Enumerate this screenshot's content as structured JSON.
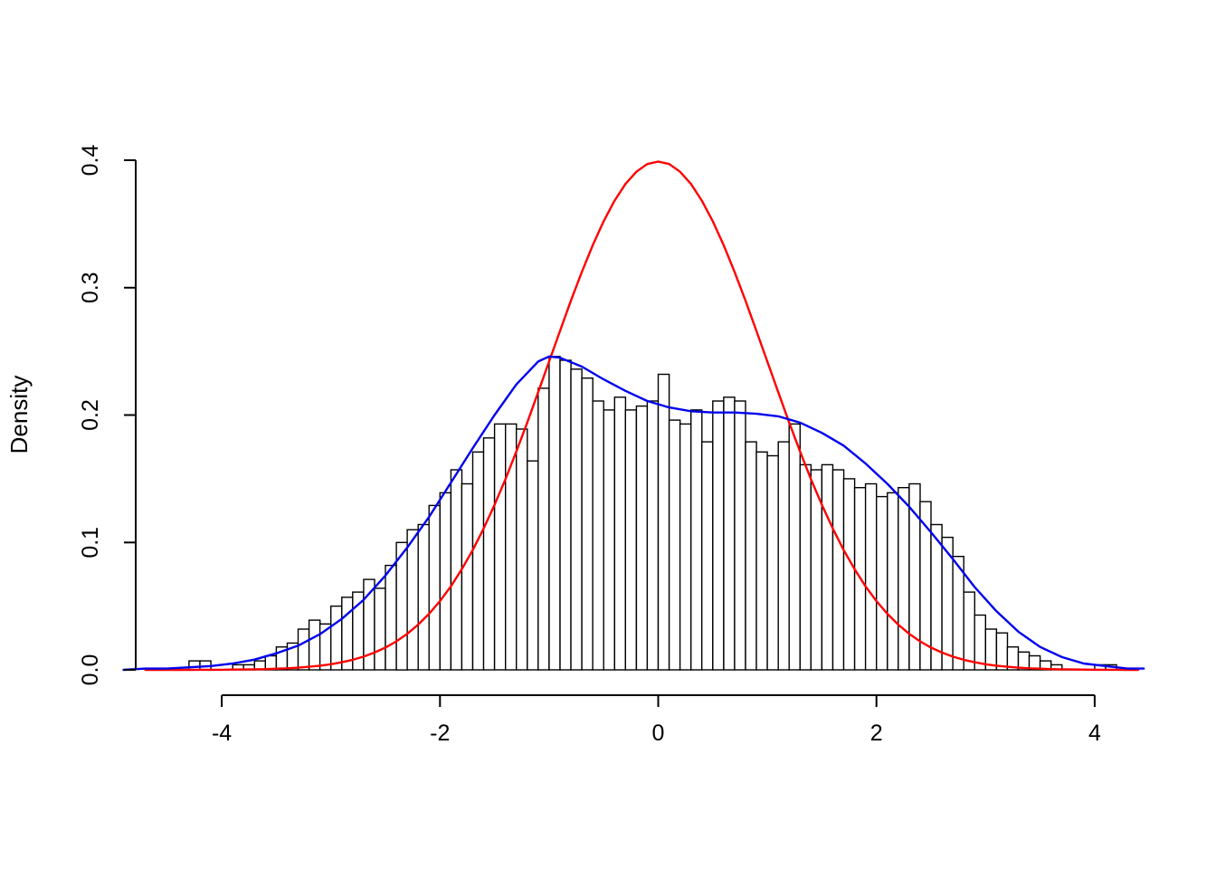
{
  "figure": {
    "background": "#ffffff"
  },
  "chart_data": {
    "type": "histogram",
    "title": "",
    "xlabel": "",
    "ylabel": "Density",
    "legend": "none",
    "grid": false,
    "xlim": [
      -4.9,
      4.45
    ],
    "ylim": [
      0,
      0.4
    ],
    "x_axis": {
      "ticks": [
        -4,
        -2,
        0,
        2,
        4
      ],
      "labels": [
        "-4",
        "-2",
        "0",
        "2",
        "4"
      ],
      "range": [
        -4,
        4
      ]
    },
    "y_axis": {
      "ticks": [
        0,
        0.1,
        0.2,
        0.3,
        0.4
      ],
      "labels": [
        "0.0",
        "0.1",
        "0.2",
        "0.3",
        "0.4"
      ],
      "range": [
        0,
        0.4
      ],
      "title": "Density"
    },
    "histogram": {
      "bar_fill": "#ffffff",
      "bar_stroke": "#000000",
      "bin_start": -4.3,
      "bin_width": 0.1,
      "densities": [
        0.007,
        0.007,
        0,
        0,
        0.004,
        0.004,
        0.007,
        0.011,
        0.018,
        0.021,
        0.032,
        0.039,
        0.036,
        0.05,
        0.057,
        0.061,
        0.071,
        0.064,
        0.082,
        0.1,
        0.11,
        0.114,
        0.129,
        0.139,
        0.157,
        0.146,
        0.171,
        0.182,
        0.193,
        0.193,
        0.189,
        0.164,
        0.221,
        0.246,
        0.243,
        0.236,
        0.229,
        0.211,
        0.204,
        0.214,
        0.204,
        0.207,
        0.211,
        0.232,
        0.196,
        0.193,
        0.204,
        0.179,
        0.211,
        0.214,
        0.211,
        0.179,
        0.171,
        0.168,
        0.179,
        0.193,
        0.161,
        0.157,
        0.161,
        0.157,
        0.15,
        0.143,
        0.146,
        0.136,
        0.139,
        0.143,
        0.146,
        0.132,
        0.114,
        0.104,
        0.089,
        0.061,
        0.043,
        0.032,
        0.029,
        0.018,
        0.014,
        0.011,
        0.007,
        0.004,
        0,
        0,
        0,
        0.004,
        0.004
      ]
    },
    "series": [
      {
        "name": "standard-normal-curve",
        "color": "#ff0000",
        "x_start": -4.7,
        "x_step": 0.1,
        "y": [
          0.0,
          0.0,
          0.0,
          0.0,
          0.0,
          0.0001,
          0.0001,
          0.0001,
          0.0002,
          0.0003,
          0.0004,
          0.0006,
          0.0009,
          0.0012,
          0.0017,
          0.0024,
          0.0033,
          0.0044,
          0.006,
          0.0079,
          0.0104,
          0.0136,
          0.0175,
          0.0224,
          0.0283,
          0.0355,
          0.044,
          0.054,
          0.0656,
          0.079,
          0.094,
          0.1109,
          0.1295,
          0.1497,
          0.1714,
          0.1942,
          0.2179,
          0.242,
          0.2661,
          0.2897,
          0.3123,
          0.3332,
          0.3521,
          0.3683,
          0.3814,
          0.391,
          0.397,
          0.3989,
          0.397,
          0.391,
          0.3814,
          0.3683,
          0.3521,
          0.3332,
          0.3123,
          0.2897,
          0.2661,
          0.242,
          0.2179,
          0.1942,
          0.1714,
          0.1497,
          0.1295,
          0.1109,
          0.094,
          0.079,
          0.0656,
          0.054,
          0.044,
          0.0355,
          0.0283,
          0.0224,
          0.0175,
          0.0136,
          0.0104,
          0.0079,
          0.006,
          0.0044,
          0.0033,
          0.0024,
          0.0017,
          0.0012,
          0.0009,
          0.0006,
          0.0004,
          0.0003,
          0.0002,
          0.0001,
          0.0001,
          0.0001,
          0.0,
          0.0
        ]
      },
      {
        "name": "kernel-density-estimate-curve",
        "color": "#0000ee",
        "x": [
          -4.9,
          -4.7,
          -4.5,
          -4.3,
          -4.1,
          -3.9,
          -3.7,
          -3.5,
          -3.3,
          -3.1,
          -2.9,
          -2.7,
          -2.5,
          -2.3,
          -2.1,
          -1.9,
          -1.7,
          -1.5,
          -1.3,
          -1.1,
          -1.0,
          -0.9,
          -0.7,
          -0.5,
          -0.3,
          -0.1,
          0.1,
          0.3,
          0.5,
          0.7,
          0.9,
          1.1,
          1.3,
          1.5,
          1.7,
          1.9,
          2.1,
          2.3,
          2.5,
          2.7,
          2.9,
          3.1,
          3.3,
          3.5,
          3.7,
          3.9,
          4.1,
          4.3,
          4.45
        ],
        "y": [
          0.0,
          0.001,
          0.001,
          0.002,
          0.003,
          0.005,
          0.008,
          0.013,
          0.019,
          0.028,
          0.04,
          0.055,
          0.074,
          0.096,
          0.12,
          0.147,
          0.174,
          0.2,
          0.224,
          0.242,
          0.246,
          0.245,
          0.238,
          0.228,
          0.219,
          0.211,
          0.206,
          0.203,
          0.202,
          0.202,
          0.201,
          0.199,
          0.194,
          0.186,
          0.176,
          0.162,
          0.146,
          0.128,
          0.108,
          0.087,
          0.065,
          0.046,
          0.03,
          0.018,
          0.01,
          0.005,
          0.003,
          0.001,
          0.001
        ]
      }
    ]
  }
}
